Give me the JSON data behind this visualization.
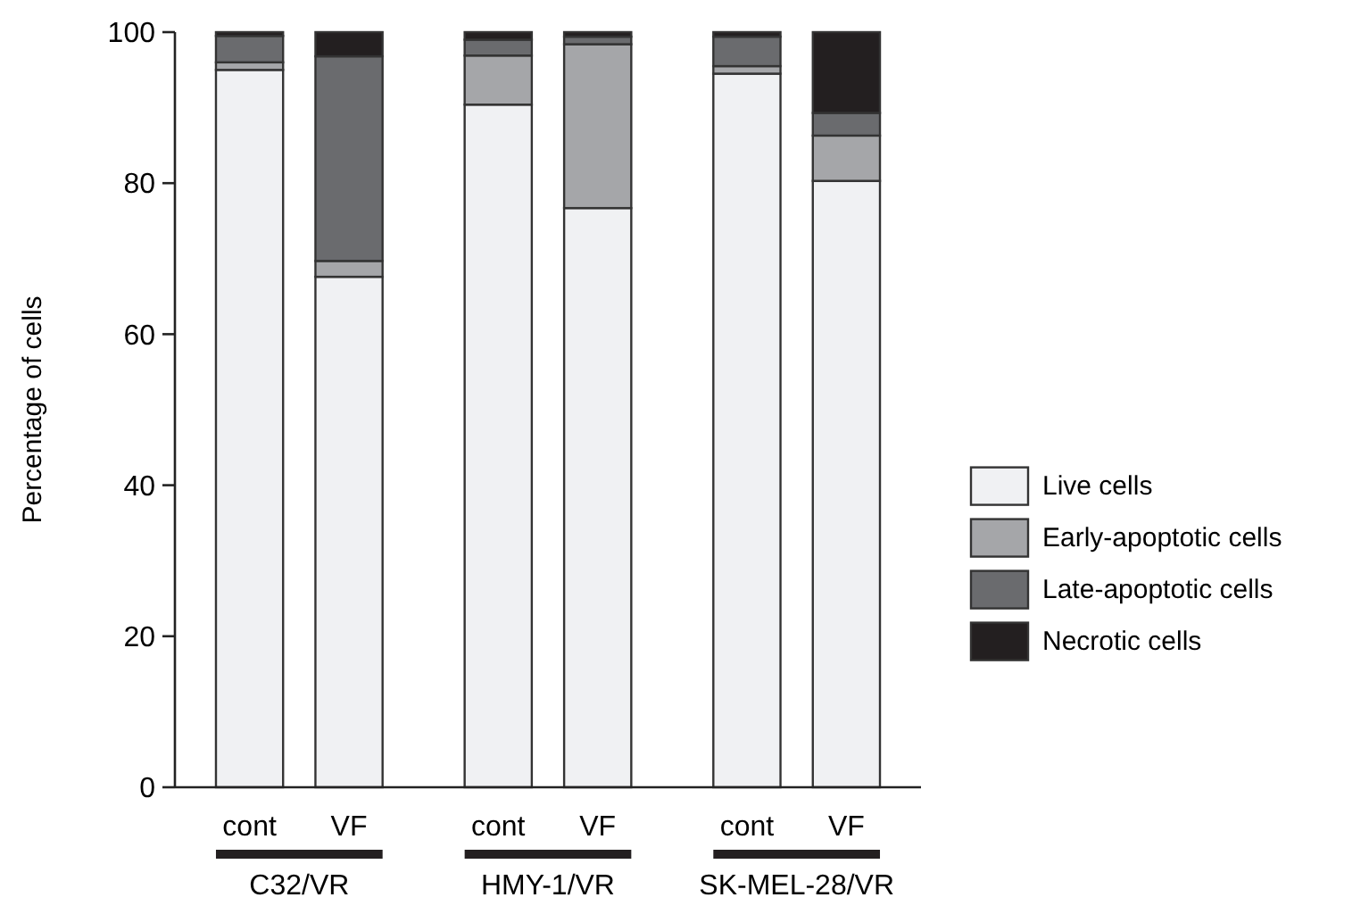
{
  "chart_data": {
    "type": "bar",
    "stacked": true,
    "ylabel": "Percentage of cells",
    "categories": [
      "cont",
      "VF",
      "cont",
      "VF",
      "cont",
      "VF"
    ],
    "ylim": [
      0,
      100
    ],
    "yticks": [
      0,
      20,
      40,
      60,
      80,
      100
    ],
    "legend": "right",
    "grid": false,
    "annotations": [
      "C32/VR",
      "HMY-1/VR",
      "SK-MEL-28/VR"
    ],
    "series": [
      {
        "name": "Live cells",
        "color": "#f0f1f3",
        "values": [
          95.0,
          67.6,
          90.4,
          76.7,
          94.5,
          80.3
        ]
      },
      {
        "name": "Early-apoptotic cells",
        "color": "#a5a6a9",
        "values": [
          1.0,
          2.1,
          6.5,
          21.7,
          1.0,
          6.0
        ]
      },
      {
        "name": "Late-apoptotic cells",
        "color": "#6a6b6e",
        "values": [
          3.5,
          27.1,
          2.1,
          1.0,
          3.9,
          3.0
        ]
      },
      {
        "name": "Necrotic cells",
        "color": "#231f20",
        "values": [
          0.5,
          3.2,
          1.0,
          0.6,
          0.6,
          10.7
        ]
      }
    ]
  }
}
